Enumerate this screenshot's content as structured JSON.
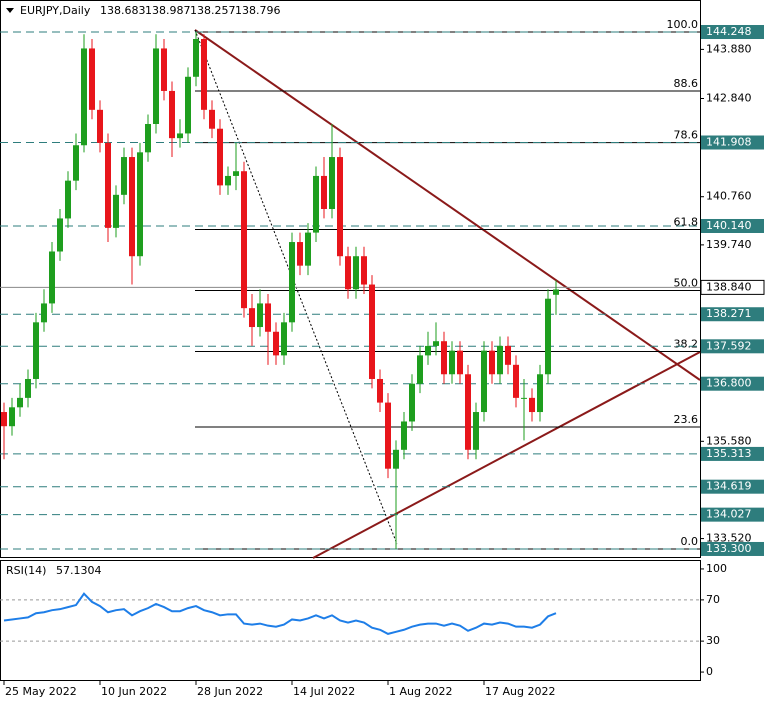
{
  "chart_data": [
    {
      "type": "candlestick",
      "title": "EURJPY,Daily",
      "categories": [
        "25 May 2022",
        null,
        null,
        null,
        null,
        null,
        null,
        null,
        null,
        null,
        null,
        null,
        "10 Jun 2022",
        null,
        null,
        null,
        null,
        null,
        null,
        null,
        null,
        null,
        null,
        null,
        "28 Jun 2022",
        null,
        null,
        null,
        null,
        null,
        null,
        null,
        null,
        null,
        null,
        null,
        "14 Jul 2022",
        null,
        null,
        null,
        null,
        null,
        null,
        null,
        null,
        null,
        null,
        null,
        "1 Aug 2022",
        null,
        null,
        null,
        null,
        null,
        null,
        null,
        null,
        null,
        null,
        null,
        "17 Aug 2022",
        null,
        null,
        null,
        null,
        null,
        null,
        null,
        null,
        null
      ],
      "ohlc": [
        [
          136.2,
          136.4,
          135.2,
          135.9
        ],
        [
          135.9,
          136.5,
          135.7,
          136.3
        ],
        [
          136.3,
          136.8,
          136.1,
          136.5
        ],
        [
          136.5,
          137.1,
          136.3,
          136.9
        ],
        [
          136.9,
          138.3,
          136.7,
          138.1
        ],
        [
          138.1,
          138.8,
          137.9,
          138.5
        ],
        [
          138.5,
          139.8,
          138.3,
          139.6
        ],
        [
          139.6,
          140.5,
          139.4,
          140.3
        ],
        [
          140.3,
          141.3,
          140.1,
          141.1
        ],
        [
          141.1,
          142.1,
          140.9,
          141.85
        ],
        [
          141.85,
          144.2,
          141.7,
          143.9
        ],
        [
          143.9,
          144.1,
          142.4,
          142.6
        ],
        [
          142.6,
          142.8,
          141.7,
          141.9
        ],
        [
          141.9,
          142.1,
          139.8,
          140.1
        ],
        [
          140.1,
          141.0,
          139.9,
          140.8
        ],
        [
          140.8,
          141.8,
          140.6,
          141.6
        ],
        [
          141.6,
          141.8,
          138.9,
          139.5
        ],
        [
          139.5,
          141.9,
          139.3,
          141.7
        ],
        [
          141.7,
          142.5,
          141.5,
          142.3
        ],
        [
          142.3,
          144.2,
          142.1,
          143.9
        ],
        [
          143.9,
          144.1,
          142.8,
          143.0
        ],
        [
          143.0,
          143.2,
          141.6,
          142.0
        ],
        [
          142.0,
          142.4,
          141.8,
          142.1
        ],
        [
          142.1,
          143.5,
          141.9,
          143.3
        ],
        [
          143.3,
          144.25,
          143.1,
          144.1
        ],
        [
          144.1,
          144.2,
          142.4,
          142.6
        ],
        [
          142.6,
          142.8,
          142.0,
          142.2
        ],
        [
          142.2,
          142.4,
          140.8,
          141.0
        ],
        [
          141.0,
          141.4,
          140.8,
          141.2
        ],
        [
          141.2,
          141.9,
          140.9,
          141.3
        ],
        [
          141.3,
          141.5,
          138.2,
          138.4
        ],
        [
          138.4,
          138.7,
          137.6,
          138.0
        ],
        [
          138.0,
          138.8,
          137.8,
          138.5
        ],
        [
          138.5,
          138.7,
          137.2,
          137.9
        ],
        [
          137.9,
          138.1,
          137.2,
          137.4
        ],
        [
          137.4,
          138.3,
          137.2,
          138.1
        ],
        [
          138.1,
          140.0,
          137.9,
          139.8
        ],
        [
          139.8,
          140.0,
          139.1,
          139.3
        ],
        [
          139.3,
          140.2,
          139.1,
          140.0
        ],
        [
          140.0,
          141.4,
          139.8,
          141.2
        ],
        [
          141.2,
          141.6,
          140.3,
          140.5
        ],
        [
          140.5,
          142.3,
          140.3,
          141.6
        ],
        [
          141.6,
          141.8,
          139.3,
          139.5
        ],
        [
          139.5,
          139.7,
          138.6,
          138.8
        ],
        [
          138.8,
          139.7,
          138.6,
          139.5
        ],
        [
          139.5,
          139.7,
          138.7,
          138.9
        ],
        [
          138.9,
          139.1,
          136.7,
          136.9
        ],
        [
          136.9,
          137.1,
          136.2,
          136.4
        ],
        [
          136.4,
          136.6,
          134.8,
          135.0
        ],
        [
          135.0,
          135.6,
          133.3,
          135.4
        ],
        [
          135.4,
          136.2,
          135.2,
          136.0
        ],
        [
          136.0,
          137.0,
          135.8,
          136.8
        ],
        [
          136.8,
          137.6,
          136.6,
          137.4
        ],
        [
          137.4,
          137.9,
          137.2,
          137.6
        ],
        [
          137.6,
          138.1,
          137.4,
          137.7
        ],
        [
          137.7,
          137.9,
          136.8,
          137.0
        ],
        [
          137.0,
          137.7,
          136.8,
          137.5
        ],
        [
          137.5,
          137.7,
          136.8,
          137.0
        ],
        [
          137.0,
          137.2,
          135.2,
          135.4
        ],
        [
          135.4,
          136.4,
          135.2,
          136.2
        ],
        [
          136.2,
          137.7,
          136.0,
          137.5
        ],
        [
          137.5,
          137.7,
          136.8,
          137.0
        ],
        [
          137.0,
          137.8,
          136.8,
          137.6
        ],
        [
          137.6,
          137.8,
          137.0,
          137.2
        ],
        [
          137.2,
          137.4,
          136.3,
          136.5
        ],
        [
          136.5,
          136.9,
          135.6,
          136.5
        ],
        [
          136.5,
          136.7,
          136.0,
          136.2
        ],
        [
          136.2,
          137.2,
          136.0,
          137.0
        ],
        [
          137.0,
          138.8,
          136.8,
          138.6
        ],
        [
          138.683,
          138.987,
          138.257,
          138.796
        ]
      ],
      "up_color": "#1e9e1e",
      "down_color": "#e8151b",
      "ylim": [
        133.13,
        144.926
      ],
      "yticks": [
        {
          "value": 143.88,
          "label": "143.880"
        },
        {
          "value": 142.84,
          "label": "142.840"
        },
        {
          "value": 140.76,
          "label": "140.760"
        },
        {
          "value": 139.74,
          "label": "139.740"
        },
        {
          "value": 135.58,
          "label": "135.580"
        },
        {
          "value": 133.52,
          "label": "133.520"
        }
      ],
      "levels": [
        {
          "value": 144.248,
          "label": "144.248"
        },
        {
          "value": 141.908,
          "label": "141.908"
        },
        {
          "value": 140.14,
          "label": "140.140"
        },
        {
          "value": 138.271,
          "label": "138.271"
        },
        {
          "value": 137.592,
          "label": "137.592"
        },
        {
          "value": 136.8,
          "label": "136.800"
        },
        {
          "value": 135.313,
          "label": "135.313"
        },
        {
          "value": 134.619,
          "label": "134.619"
        },
        {
          "value": 134.027,
          "label": "134.027"
        },
        {
          "value": 133.3,
          "label": "133.300"
        }
      ],
      "level_color": "#2e7d7d",
      "price_line": {
        "value": 138.84,
        "label": "138.840"
      },
      "fib": {
        "high": 144.248,
        "low": 133.3,
        "levels": [
          {
            "value": 100,
            "label": "100.0"
          },
          88.6,
          78.6,
          61.8,
          {
            "value": 50,
            "label": "50.0"
          },
          38.2,
          23.6,
          {
            "value": 0,
            "label": "0.0"
          }
        ]
      }
    },
    {
      "type": "line",
      "title": "RSI(14)",
      "color": "#1e7ee8",
      "values": [
        50,
        51,
        52,
        53,
        57,
        58,
        60,
        61,
        63,
        65,
        76,
        68,
        64,
        58,
        60,
        61,
        55,
        59,
        62,
        66,
        63,
        59,
        59,
        62,
        64,
        60,
        58,
        55,
        56,
        56,
        47,
        46,
        47,
        45,
        44,
        46,
        51,
        50,
        52,
        55,
        52,
        55,
        50,
        48,
        50,
        48,
        43,
        41,
        37,
        39,
        41,
        44,
        46,
        47,
        47,
        45,
        47,
        45,
        40,
        43,
        47,
        46,
        48,
        47,
        44,
        44,
        43,
        46,
        54,
        57.1304
      ],
      "ylim": [
        -7.7,
        107.7
      ],
      "yticks": [
        100,
        70,
        30,
        0
      ],
      "dashed_levels": [
        70,
        30
      ]
    }
  ]
}
